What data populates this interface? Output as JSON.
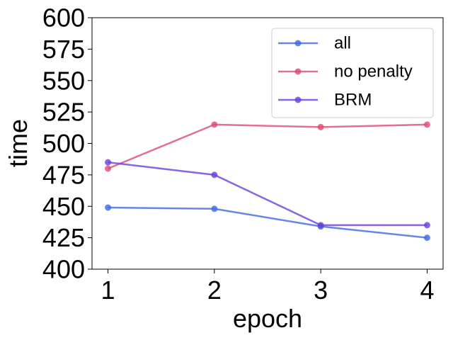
{
  "chart_data": {
    "type": "line",
    "x": [
      1,
      2,
      3,
      4
    ],
    "xticks": [
      "1",
      "2",
      "3",
      "4"
    ],
    "yticks": [
      "400",
      "425",
      "450",
      "475",
      "500",
      "525",
      "550",
      "575",
      "600"
    ],
    "xlabel": "epoch",
    "ylabel": "time",
    "xlim": [
      0.85,
      4.15
    ],
    "ylim": [
      400,
      600
    ],
    "grid": false,
    "legend_position": "top-right",
    "series": [
      {
        "name": "all",
        "values": [
          449,
          448,
          434,
          425
        ],
        "color": "#4169e1"
      },
      {
        "name": "no penalty",
        "values": [
          480,
          515,
          513,
          515
        ],
        "color": "#dc4a73"
      },
      {
        "name": "BRM",
        "values": [
          485,
          475,
          435,
          435
        ],
        "color": "#6a3fdc"
      }
    ]
  }
}
